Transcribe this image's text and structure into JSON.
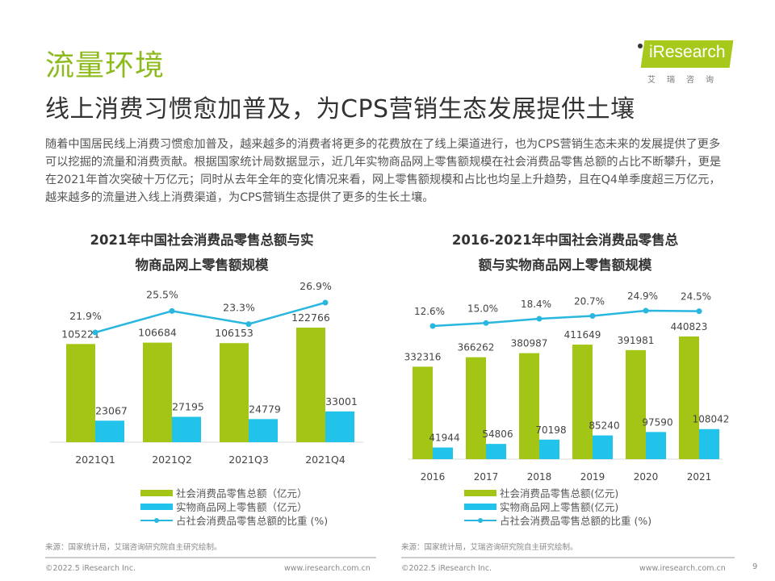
{
  "header": {
    "section_title": "流量环境",
    "headline": "线上消费习惯愈加普及，为CPS营销生态发展提供土壤",
    "logo_text": "Research",
    "logo_sub": "艾瑞咨询"
  },
  "body": {
    "paragraph": "随着中国居民线上消费习惯愈加普及，越来越多的消费者将更多的花费放在了线上渠道进行，也为CPS营销生态未来的发展提供了更多可以挖掘的流量和消费贡献。根据国家统计局数据显示，近几年实物商品网上零售额规模在社会消费品零售总额的占比不断攀升，更是在2021年首次突破十万亿元；同时从去年全年的变化情况来看，网上零售额规模和占比也均呈上升趋势，且在Q4单季度超三万亿元，越来越多的流量进入线上消费渠道，为CPS营销生态提供了更多的生长土壤。"
  },
  "colors": {
    "green": "#a3c515",
    "blue": "#22c3ea",
    "line": "#29b7e0",
    "accent": "#8dbb1e"
  },
  "chart_data": [
    {
      "type": "bar",
      "title": "2021年中国社会消费品零售总额与实物商品网上零售额规模",
      "title_lines": [
        "2021年中国社会消费品零售总额与实",
        "物商品网上零售额规模"
      ],
      "categories": [
        "2021Q1",
        "2021Q2",
        "2021Q3",
        "2021Q4"
      ],
      "series": [
        {
          "name": "社会消费品零售总额（亿元）",
          "type": "bar",
          "values": [
            105221,
            106684,
            106153,
            122766
          ],
          "labels": [
            "105221",
            "106684",
            "106153",
            "122766"
          ]
        },
        {
          "name": "实物商品网上零售额（亿元）",
          "type": "bar",
          "values": [
            23067,
            27195,
            24779,
            33001
          ],
          "labels": [
            "23067",
            "27195",
            "24779",
            "33001"
          ]
        },
        {
          "name": "占社会消费品零售总额的比重 (%)",
          "type": "line",
          "values": [
            21.9,
            25.5,
            23.3,
            26.9
          ],
          "labels": [
            "21.9%",
            "25.5%",
            "23.3%",
            "26.9%"
          ]
        }
      ],
      "legend": [
        "社会消费品零售总额（亿元）",
        "实物商品网上零售额（亿元）",
        "占社会消费品零售总额的比重 (%)"
      ],
      "legend_position": "bottom",
      "grid": false,
      "xlabel": "",
      "ylabel": ""
    },
    {
      "type": "bar",
      "title": "2016-2021年中国社会消费品零售总额与实物商品网上零售额规模",
      "title_lines": [
        "2016-2021年中国社会消费品零售总",
        "额与实物商品网上零售额规模"
      ],
      "categories": [
        "2016",
        "2017",
        "2018",
        "2019",
        "2020",
        "2021"
      ],
      "series": [
        {
          "name": "社会消费品零售总额(亿元)",
          "type": "bar",
          "values": [
            332316,
            366262,
            380987,
            411649,
            391981,
            440823
          ],
          "labels": [
            "332316",
            "366262",
            "380987",
            "411649",
            "391981",
            "440823"
          ]
        },
        {
          "name": "实物商品网上零售额(亿元)",
          "type": "bar",
          "values": [
            41944,
            54806,
            70198,
            85240,
            97590,
            108042
          ],
          "labels": [
            "41944",
            "54806",
            "70198",
            "85240",
            "97590",
            "108042"
          ]
        },
        {
          "name": "占社会消费品零售总额的比重 (%)",
          "type": "line",
          "values": [
            12.6,
            15.0,
            18.4,
            20.7,
            24.9,
            24.5
          ],
          "labels": [
            "12.6%",
            "15.0%",
            "18.4%",
            "20.7%",
            "24.9%",
            "24.5%"
          ]
        }
      ],
      "legend": [
        "社会消费品零售总额(亿元)",
        "实物商品网上零售额(亿元)",
        "占社会消费品零售总额的比重 (%)"
      ],
      "legend_position": "bottom",
      "grid": false,
      "xlabel": "",
      "ylabel": ""
    }
  ],
  "footer": {
    "source_left": "来源：国家统计局，艾瑞咨询研究院自主研究绘制。",
    "source_right": "来源：国家统计局，艾瑞咨询研究院自主研究绘制。",
    "copyright_left": "©2022.5 iResearch Inc.",
    "website_left": "www.iresearch.com.cn",
    "copyright_right": "©2022.5 iResearch Inc.",
    "website_right": "www.iresearch.com.cn",
    "page_number": "9"
  }
}
